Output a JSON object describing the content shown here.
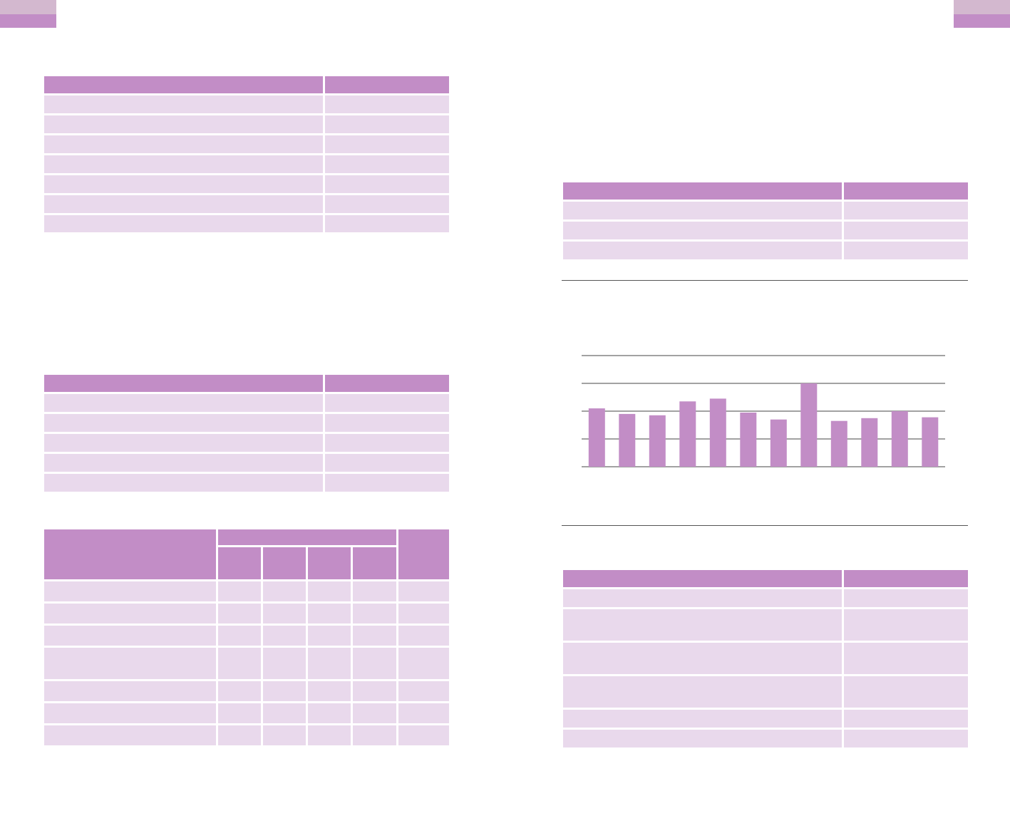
{
  "colors": {
    "header": "#c28dc6",
    "row": "#e9d9ec",
    "tab_light": "#d3b8cf",
    "tab_dark": "#c28dc6",
    "rule": "#555555"
  },
  "tables": {
    "left_top_rows": 7,
    "left_middle_rows": 5,
    "left_bottom_rows": 7,
    "right_top_rows": 3,
    "right_bottom_rows": 6
  },
  "chart_data": {
    "type": "bar",
    "title": "",
    "xlabel": "",
    "ylabel": "",
    "categories": [
      "",
      "",
      "",
      "",
      "",
      "",
      "",
      "",
      "",
      "",
      "",
      ""
    ],
    "values": [
      2.1,
      1.9,
      1.85,
      2.35,
      2.45,
      1.95,
      1.7,
      3.0,
      1.65,
      1.75,
      2.0,
      1.78
    ],
    "ylim": [
      0,
      4
    ],
    "grid": true,
    "legend": "none"
  }
}
